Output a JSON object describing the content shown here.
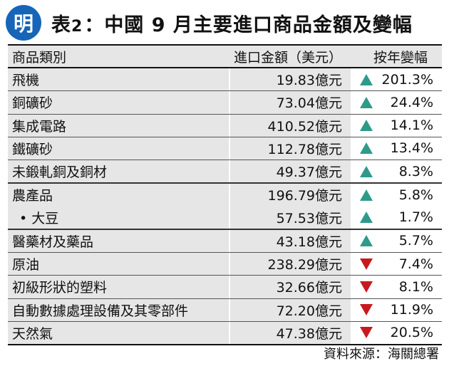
{
  "header": {
    "logo_char": "明",
    "title_prefix": "表",
    "title_num": "2",
    "title_sep": "：",
    "title_text": "中國 9 月主要進口商品金額及變幅"
  },
  "table": {
    "columns": [
      "商品類別",
      "進口金額（美元）",
      "按年變幅"
    ],
    "rows": [
      {
        "name": "飛機",
        "amount": "19.83億元",
        "change": "201.3%",
        "direction": "up"
      },
      {
        "name": "銅礦砂",
        "amount": "73.04億元",
        "change": "24.4%",
        "direction": "up"
      },
      {
        "name": "集成電路",
        "amount": "410.52億元",
        "change": "14.1%",
        "direction": "up"
      },
      {
        "name": "鐵礦砂",
        "amount": "112.78億元",
        "change": "13.4%",
        "direction": "up"
      },
      {
        "name": "未鍛軋銅及銅材",
        "amount": "49.37億元",
        "change": "8.3%",
        "direction": "up"
      },
      {
        "name": "農產品",
        "amount": "196.79億元",
        "change": "5.8%",
        "direction": "up"
      },
      {
        "name": "大豆",
        "amount": "57.53億元",
        "change": "1.7%",
        "direction": "up",
        "sub": true
      },
      {
        "name": "醫藥材及藥品",
        "amount": "43.18億元",
        "change": "5.7%",
        "direction": "up"
      },
      {
        "name": "原油",
        "amount": "238.29億元",
        "change": "7.4%",
        "direction": "down"
      },
      {
        "name": "初級形狀的塑料",
        "amount": "32.66億元",
        "change": "8.1%",
        "direction": "down"
      },
      {
        "name": "自動數據處理設備及其零部件",
        "amount": "72.20億元",
        "change": "11.9%",
        "direction": "down"
      },
      {
        "name": "天然氣",
        "amount": "47.38億元",
        "change": "20.5%",
        "direction": "down"
      }
    ]
  },
  "source": "資料來源：海關總署",
  "colors": {
    "up": "#2e9a8a",
    "down": "#c81a1e",
    "logo": "#1665b8",
    "row_grey": "#e6e6e6"
  }
}
